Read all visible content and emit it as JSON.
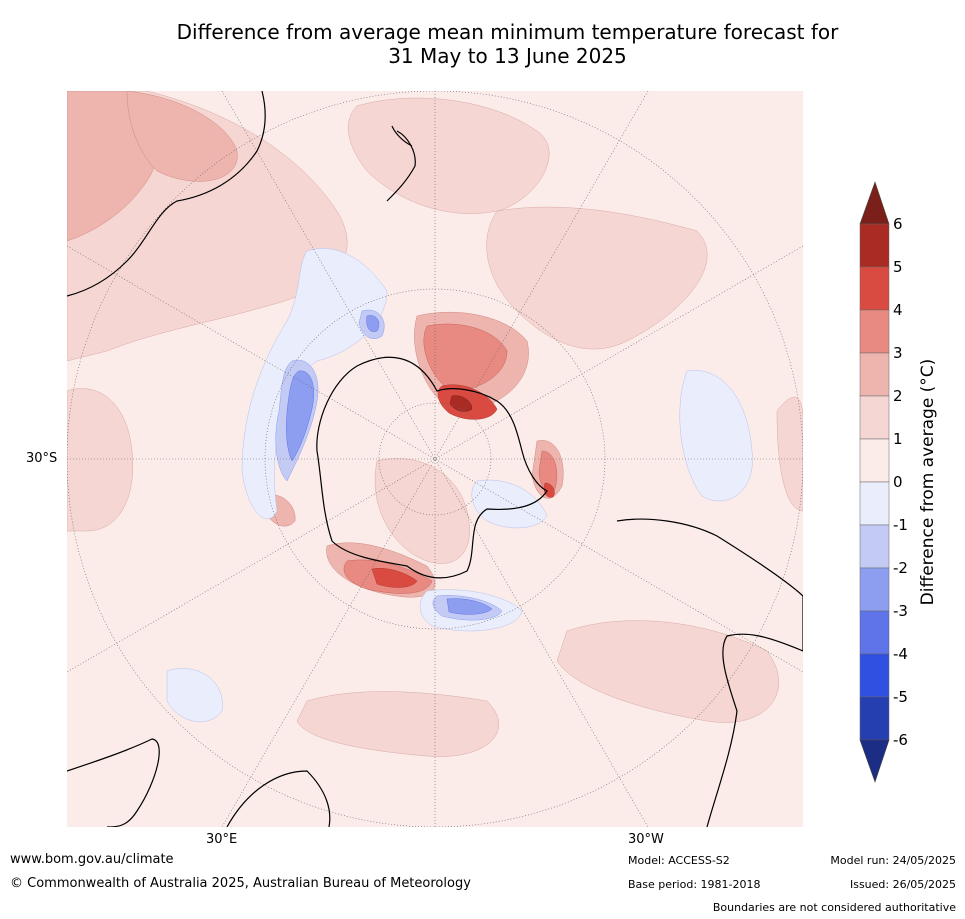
{
  "title_line1": "Difference from average mean minimum temperature forecast for",
  "title_line2": "31 May to 13 June 2025",
  "graticule_labels": {
    "lat_30s": "30°S",
    "lon_30e": "30°E",
    "lon_30w": "30°W"
  },
  "colorbar": {
    "label": "Difference from average (°C)",
    "ticks": [
      "6",
      "5",
      "4",
      "3",
      "2",
      "1",
      "0",
      "-1",
      "-2",
      "-3",
      "-4",
      "-5",
      "-6"
    ],
    "colors": [
      "#a92b24",
      "#d94b40",
      "#e88a82",
      "#eeb4ae",
      "#f5d6d3",
      "#fbecea",
      "#eaedfb",
      "#c3cbf5",
      "#8d9ef0",
      "#5f74e8",
      "#3050e2",
      "#263fb0"
    ],
    "over_color": "#7a1f1a",
    "under_color": "#1c2d85"
  },
  "footer": {
    "website": "www.bom.gov.au/climate",
    "copyright": "© Commonwealth of Australia 2025, Australian Bureau of Meteorology",
    "model": "Model: ACCESS-S2",
    "base_period": "Base period: 1981-2018",
    "model_run": "Model run: 24/05/2025",
    "issued": "Issued: 26/05/2025",
    "disclaimer": "Boundaries are not considered authoritative"
  }
}
